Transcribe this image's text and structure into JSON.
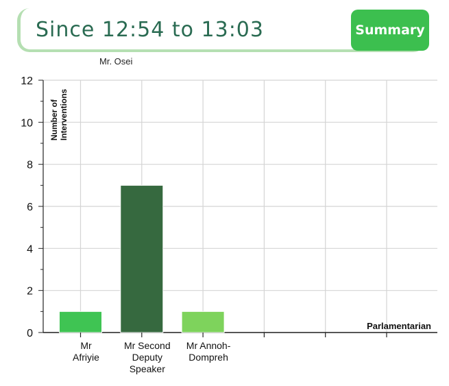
{
  "header": {
    "title": "Since 12:54 to 13:03",
    "summary_label": "Summary"
  },
  "speaker": "Mr. Osei",
  "colors": {
    "accent": "#3cbf4f",
    "title": "#2a6b52",
    "header_border": "#b5dfb2",
    "grid": "#d4d4d4"
  },
  "chart_data": {
    "type": "bar",
    "categories": [
      [
        "Mr",
        "Afriyie"
      ],
      [
        "Mr Second",
        "Deputy",
        "Speaker"
      ],
      [
        "Mr Annoh-",
        "Dompreh"
      ],
      [
        ""
      ],
      [
        ""
      ],
      [
        ""
      ]
    ],
    "values": [
      1,
      7,
      1,
      null,
      null,
      null
    ],
    "bar_colors": [
      "#3fc453",
      "#36693f",
      "#7ed35c"
    ],
    "ylabel": [
      "Number of",
      "Interventions"
    ],
    "xlabel": "Parlamentarian",
    "ylim": [
      0,
      12
    ],
    "yticks": [
      0,
      2,
      4,
      6,
      8,
      10,
      12
    ],
    "grid": true
  }
}
